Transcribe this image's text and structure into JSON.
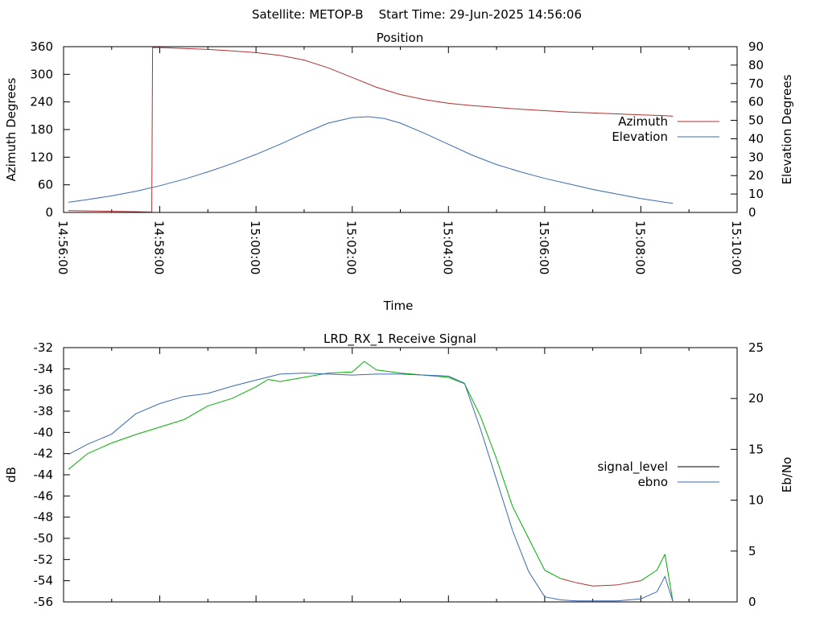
{
  "header": {
    "text": "Satellite: METOP-B    Start Time: 29-Jun-2025 14:56:06"
  },
  "chart_data": [
    {
      "type": "line",
      "title": "Position",
      "xlabel": "Time",
      "ylabel": "Azimuth Degrees",
      "y2label": "Elevation Degrees",
      "xlim": [
        "14:56:00",
        "15:10:00"
      ],
      "ylim": [
        0,
        360
      ],
      "y2lim": [
        0,
        90
      ],
      "xticks": [
        "14:56:00",
        "14:58:00",
        "15:00:00",
        "15:02:00",
        "15:04:00",
        "15:06:00",
        "15:08:00",
        "15:10:00"
      ],
      "yticks": [
        "360",
        "300",
        "240",
        "180",
        "120",
        "60",
        "0"
      ],
      "y2ticks": [
        "90",
        "80",
        "70",
        "60",
        "50",
        "40",
        "30",
        "20",
        "10",
        "0"
      ],
      "legend_position": "right",
      "series": [
        {
          "name": "Azimuth",
          "axis": "left",
          "color": "#b03030",
          "x": [
            "14:56:06",
            "14:56:40",
            "14:57:20",
            "14:57:50",
            "14:57:51",
            "14:58:00",
            "14:58:30",
            "14:59:00",
            "14:59:30",
            "15:00:00",
            "15:00:30",
            "15:01:00",
            "15:01:30",
            "15:02:00",
            "15:02:30",
            "15:03:00",
            "15:03:30",
            "15:04:00",
            "15:04:30",
            "15:05:00",
            "15:05:30",
            "15:06:00",
            "15:06:30",
            "15:07:00",
            "15:07:30",
            "15:08:00",
            "15:08:30",
            "15:08:40"
          ],
          "y": [
            4,
            3,
            2,
            1,
            358,
            358,
            356,
            354,
            351,
            347,
            341,
            331,
            314,
            293,
            272,
            256,
            245,
            237,
            232,
            228,
            224,
            221,
            218,
            216,
            214,
            212,
            210,
            209
          ]
        },
        {
          "name": "Elevation",
          "axis": "right",
          "color": "#3a6ab0",
          "x": [
            "14:56:06",
            "14:56:30",
            "14:57:00",
            "14:57:30",
            "14:58:00",
            "14:58:30",
            "14:59:00",
            "14:59:30",
            "15:00:00",
            "15:00:30",
            "15:01:00",
            "15:01:30",
            "15:02:00",
            "15:02:20",
            "15:02:40",
            "15:03:00",
            "15:03:30",
            "15:04:00",
            "15:04:30",
            "15:05:00",
            "15:05:30",
            "15:06:00",
            "15:06:30",
            "15:07:00",
            "15:07:30",
            "15:08:00",
            "15:08:30",
            "15:08:40"
          ],
          "y": [
            5.5,
            7,
            9,
            11.5,
            14.5,
            18,
            22,
            26.5,
            31.5,
            37,
            43,
            48.5,
            51.5,
            52,
            51,
            48.5,
            43,
            37,
            31,
            26,
            22,
            18.5,
            15.5,
            12.5,
            10,
            7.5,
            5.5,
            5
          ]
        }
      ]
    },
    {
      "type": "line",
      "title": "LRD_RX_1 Receive Signal",
      "xlabel": "",
      "ylabel": "dB",
      "y2label": "Eb/No",
      "xlim": [
        "14:56:00",
        "15:10:00"
      ],
      "ylim": [
        -56,
        -32
      ],
      "y2lim": [
        0,
        25
      ],
      "yticks": [
        "-32",
        "-34",
        "-36",
        "-38",
        "-40",
        "-42",
        "-44",
        "-46",
        "-48",
        "-50",
        "-52",
        "-54",
        "-56"
      ],
      "y2ticks": [
        "25",
        "20",
        "15",
        "10",
        "5",
        "0"
      ],
      "legend_position": "right",
      "series": [
        {
          "name": "signal_level",
          "axis": "left",
          "color": "#00b000",
          "color_low": "#b03030",
          "x": [
            "14:56:06",
            "14:56:30",
            "14:57:00",
            "14:57:30",
            "14:58:00",
            "14:58:30",
            "14:59:00",
            "14:59:30",
            "15:00:00",
            "15:00:15",
            "15:00:30",
            "15:01:00",
            "15:01:30",
            "15:02:00",
            "15:02:15",
            "15:02:30",
            "15:03:00",
            "15:03:30",
            "15:04:00",
            "15:04:20",
            "15:04:40",
            "15:05:00",
            "15:05:20",
            "15:05:40",
            "15:06:00",
            "15:06:20",
            "15:06:40",
            "15:07:00",
            "15:07:30",
            "15:08:00",
            "15:08:20",
            "15:08:30",
            "15:08:40"
          ],
          "y": [
            -43.5,
            -42,
            -41,
            -40.2,
            -39.5,
            -38.8,
            -37.5,
            -36.8,
            -35.7,
            -35,
            -35.2,
            -34.8,
            -34.4,
            -34.3,
            -33.3,
            -34.1,
            -34.4,
            -34.6,
            -34.8,
            -35.4,
            -38.5,
            -42.5,
            -47,
            -50,
            -53,
            -53.8,
            -54.2,
            -54.5,
            -54.4,
            -54,
            -53,
            -51.5,
            -56
          ]
        },
        {
          "name": "ebno",
          "axis": "right",
          "color": "#3a6ab0",
          "x": [
            "14:56:06",
            "14:56:30",
            "14:57:00",
            "14:57:30",
            "14:58:00",
            "14:58:30",
            "14:59:00",
            "14:59:30",
            "15:00:00",
            "15:00:30",
            "15:01:00",
            "15:01:30",
            "15:02:00",
            "15:02:30",
            "15:03:00",
            "15:03:30",
            "15:04:00",
            "15:04:20",
            "15:04:40",
            "15:05:00",
            "15:05:20",
            "15:05:40",
            "15:06:00",
            "15:06:20",
            "15:06:40",
            "15:07:00",
            "15:07:30",
            "15:08:00",
            "15:08:20",
            "15:08:30",
            "15:08:40"
          ],
          "y": [
            14.5,
            15.5,
            16.5,
            18.5,
            19.5,
            20.2,
            20.5,
            21.2,
            21.8,
            22.4,
            22.5,
            22.4,
            22.3,
            22.4,
            22.4,
            22.3,
            22.2,
            21.5,
            17,
            12,
            7,
            3,
            0.5,
            0.2,
            0.1,
            0.1,
            0.1,
            0.3,
            1,
            2.5,
            0
          ]
        }
      ]
    }
  ]
}
